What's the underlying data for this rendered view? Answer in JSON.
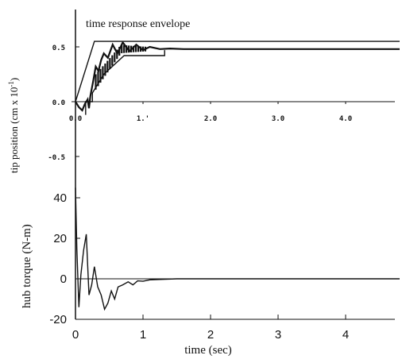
{
  "chart_data": [
    {
      "type": "line",
      "title": "",
      "annotation": "time response envelope",
      "ylabel": "tip position (cm x 10",
      "ylabel_exponent": "-1",
      "ylabel_close": ")",
      "xlim": [
        0,
        4.8
      ],
      "ylim": [
        -0.6,
        0.6
      ],
      "x_ticks": [
        0.0,
        1.0,
        2.0,
        3.0,
        4.0
      ],
      "x_tick_labels": [
        "0.0",
        "1.'",
        "2.0",
        "3.0",
        "4.0"
      ],
      "y_ticks": [
        -0.5,
        0.0,
        0.5
      ],
      "y_tick_labels": [
        "-0.5",
        "0.0",
        "0.5"
      ],
      "envelope": {
        "upper": {
          "x": [
            0.0,
            0.28,
            1.32,
            4.8
          ],
          "y": [
            0.0,
            0.55,
            0.55,
            0.55
          ]
        },
        "lower": {
          "x": [
            0.15,
            0.15,
            0.25,
            0.25,
            0.42,
            0.72,
            1.32,
            1.32
          ],
          "y": [
            -0.12,
            0.0,
            0.0,
            0.08,
            0.25,
            0.42,
            0.42,
            0.47
          ]
        }
      },
      "series": [
        {
          "values": {
            "x": [
              0.0,
              0.05,
              0.1,
              0.14,
              0.18,
              0.2,
              0.22,
              0.26,
              0.3,
              0.34,
              0.38,
              0.42,
              0.48,
              0.55,
              0.62,
              0.7,
              0.8,
              0.9,
              1.0,
              1.1,
              1.25,
              1.4,
              1.6,
              2.0,
              3.0,
              4.0,
              4.8
            ],
            "y": [
              0.0,
              -0.05,
              -0.08,
              -0.02,
              0.02,
              -0.06,
              0.05,
              0.18,
              0.32,
              0.28,
              0.38,
              0.44,
              0.4,
              0.52,
              0.44,
              0.54,
              0.46,
              0.52,
              0.47,
              0.5,
              0.48,
              0.485,
              0.48,
              0.48,
              0.48,
              0.48,
              0.48
            ]
          }
        }
      ]
    },
    {
      "type": "line",
      "title": "",
      "xlabel": "time (sec)",
      "ylabel": "hub torque (N-m)",
      "xlim": [
        -0.05,
        4.8
      ],
      "ylim": [
        -20,
        50
      ],
      "x_ticks": [
        0,
        1,
        2,
        3,
        4
      ],
      "x_tick_labels": [
        "0",
        "1",
        "2",
        "3",
        "4"
      ],
      "y_ticks": [
        -20,
        0,
        20,
        40
      ],
      "y_tick_labels": [
        "-20",
        "0",
        "20",
        "40"
      ],
      "series": [
        {
          "values": {
            "x": [
              0.0,
              0.02,
              0.05,
              0.08,
              0.12,
              0.16,
              0.2,
              0.24,
              0.28,
              0.33,
              0.38,
              0.43,
              0.48,
              0.53,
              0.58,
              0.63,
              0.7,
              0.78,
              0.85,
              0.92,
              1.0,
              1.1,
              1.25,
              1.5,
              2.0,
              3.0,
              4.0,
              4.8
            ],
            "y": [
              45,
              15,
              -14,
              2,
              14,
              22,
              -8,
              -3,
              6,
              -4,
              -8,
              -15,
              -12,
              -6,
              -10,
              -4,
              -3,
              -1.5,
              -3,
              -1,
              -1.2,
              -0.5,
              -0.3,
              0,
              0,
              0,
              0,
              0
            ]
          }
        }
      ]
    }
  ]
}
